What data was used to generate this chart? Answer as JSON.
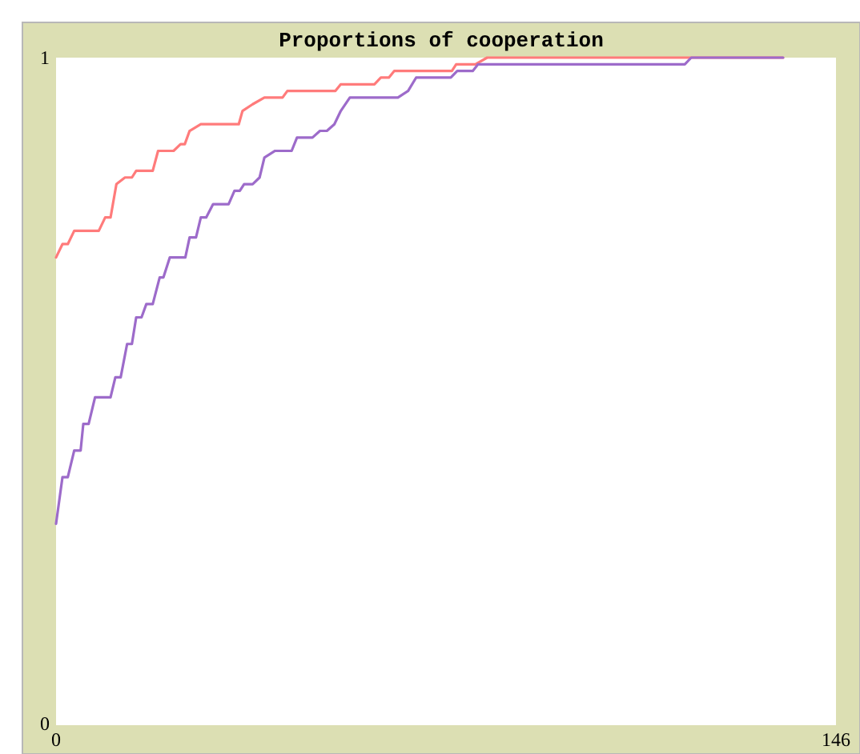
{
  "chart_data": {
    "type": "line",
    "title": "Proportions of cooperation",
    "xlim": [
      0,
      146
    ],
    "ylim": [
      0,
      1
    ],
    "xticks": [
      0,
      146
    ],
    "yticks": [
      0,
      1
    ],
    "grid": false,
    "marker": "none",
    "line_style": "solid",
    "series": [
      {
        "color": "#ff7b7b",
        "x": [
          0,
          1.2,
          2.2,
          3.4,
          8.0,
          9.2,
          10.2,
          11.3,
          12.9,
          14.2,
          15.0,
          18.1,
          19.1,
          22.0,
          23.3,
          24.1,
          25.0,
          27.1,
          34.2,
          34.9,
          36.8,
          39.0,
          42.4,
          43.3,
          52.3,
          53.3,
          59.6,
          60.8,
          62.3,
          63.3,
          74.1,
          74.9,
          78.5,
          80.7,
          136.1
        ],
        "values": [
          0.7,
          0.72,
          0.72,
          0.74,
          0.74,
          0.76,
          0.76,
          0.81,
          0.82,
          0.82,
          0.83,
          0.83,
          0.86,
          0.86,
          0.87,
          0.87,
          0.89,
          0.9,
          0.9,
          0.92,
          0.93,
          0.94,
          0.94,
          0.95,
          0.95,
          0.96,
          0.96,
          0.97,
          0.97,
          0.98,
          0.98,
          0.99,
          0.99,
          1.0,
          1.0
        ]
      },
      {
        "color": "#9d6bca",
        "x": [
          0,
          1.2,
          2.2,
          3.4,
          4.6,
          5.1,
          6.1,
          7.3,
          10.2,
          11.1,
          12.1,
          13.3,
          14.2,
          15.0,
          16.0,
          16.9,
          18.1,
          19.4,
          20.1,
          21.3,
          24.2,
          25.0,
          26.2,
          27.1,
          28.1,
          29.4,
          32.3,
          33.4,
          34.4,
          35.2,
          36.8,
          38.1,
          39.0,
          41.0,
          44.1,
          45.1,
          48.0,
          49.4,
          50.7,
          52.1,
          53.3,
          55.0,
          64.0,
          65.9,
          67.4,
          73.9,
          75.1,
          78.0,
          79.0,
          117.7,
          118.9,
          136.1
        ],
        "values": [
          0.3,
          0.37,
          0.37,
          0.41,
          0.41,
          0.45,
          0.45,
          0.49,
          0.49,
          0.52,
          0.52,
          0.57,
          0.57,
          0.61,
          0.61,
          0.63,
          0.63,
          0.67,
          0.67,
          0.7,
          0.7,
          0.73,
          0.73,
          0.76,
          0.76,
          0.78,
          0.78,
          0.8,
          0.8,
          0.81,
          0.81,
          0.82,
          0.85,
          0.86,
          0.86,
          0.88,
          0.88,
          0.89,
          0.89,
          0.9,
          0.92,
          0.94,
          0.94,
          0.95,
          0.97,
          0.97,
          0.98,
          0.98,
          0.99,
          0.99,
          1.0,
          1.0
        ]
      }
    ]
  }
}
